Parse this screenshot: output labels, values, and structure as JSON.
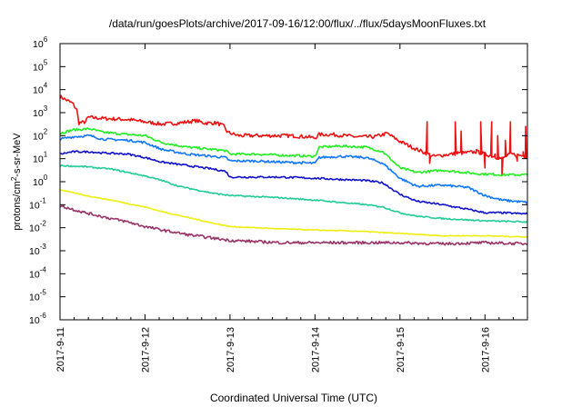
{
  "chart_data": {
    "type": "line",
    "title": "/data/run/goesPlots/archive/2017-09-16/12:00/flux/../flux/5daysMoonFluxes.txt",
    "xlabel": "Coordinated Universal Time (UTC)",
    "ylabel": {
      "prefix": "protons/cm",
      "sup": "2",
      "suffix": "-s-sr-MeV"
    },
    "yscale": "log",
    "ylim": [
      1e-06,
      1000000.0
    ],
    "xlim": [
      0,
      5.5
    ],
    "grid": false,
    "yticks": [
      {
        "base": "10",
        "exp": "-6",
        "v": -6
      },
      {
        "base": "10",
        "exp": "-5",
        "v": -5
      },
      {
        "base": "10",
        "exp": "-4",
        "v": -4
      },
      {
        "base": "10",
        "exp": "-3",
        "v": -3
      },
      {
        "base": "10",
        "exp": "-2",
        "v": -2
      },
      {
        "base": "10",
        "exp": "-1",
        "v": -1
      },
      {
        "base": "10",
        "exp": "0",
        "v": 0
      },
      {
        "base": "10",
        "exp": "1",
        "v": 1
      },
      {
        "base": "10",
        "exp": "2",
        "v": 2
      },
      {
        "base": "10",
        "exp": "3",
        "v": 3
      },
      {
        "base": "10",
        "exp": "4",
        "v": 4
      },
      {
        "base": "10",
        "exp": "5",
        "v": 5
      },
      {
        "base": "10",
        "exp": "6",
        "v": 6
      }
    ],
    "xticks": [
      {
        "label": "2017-9-11",
        "v": 0
      },
      {
        "label": "2017-9-12",
        "v": 1
      },
      {
        "label": "2017-9-13",
        "v": 2
      },
      {
        "label": "2017-9-14",
        "v": 3
      },
      {
        "label": "2017-9-15",
        "v": 4
      },
      {
        "label": "2017-9-16",
        "v": 5
      }
    ],
    "series": [
      {
        "color": "#ee1111",
        "noise": 0.08,
        "values": [
          [
            0,
            3.7
          ],
          [
            0.05,
            3.6
          ],
          [
            0.15,
            3.4
          ],
          [
            0.2,
            3.1
          ],
          [
            0.22,
            2.55
          ],
          [
            0.3,
            2.6
          ],
          [
            0.33,
            2.8
          ],
          [
            0.5,
            2.75
          ],
          [
            0.8,
            2.7
          ],
          [
            1.0,
            2.6
          ],
          [
            1.2,
            2.5
          ],
          [
            1.4,
            2.55
          ],
          [
            1.6,
            2.65
          ],
          [
            1.7,
            2.55
          ],
          [
            1.85,
            2.55
          ],
          [
            1.93,
            2.4
          ],
          [
            1.97,
            2.15
          ],
          [
            2.1,
            2.0
          ],
          [
            2.4,
            2.0
          ],
          [
            2.7,
            2.0
          ],
          [
            2.9,
            1.95
          ],
          [
            3.0,
            1.9
          ],
          [
            3.05,
            2.05
          ],
          [
            3.2,
            2.05
          ],
          [
            3.5,
            1.95
          ],
          [
            3.7,
            1.95
          ],
          [
            3.85,
            2.1
          ],
          [
            4.0,
            1.75
          ],
          [
            4.2,
            1.4
          ],
          [
            4.4,
            1.1
          ],
          [
            4.6,
            1.2
          ],
          [
            4.9,
            1.3
          ],
          [
            5.2,
            1.0
          ],
          [
            5.3,
            1.2
          ],
          [
            5.5,
            1.1
          ]
        ],
        "spikes": [
          [
            4.32,
            2.6
          ],
          [
            4.35,
            0.8
          ],
          [
            4.65,
            2.6
          ],
          [
            4.68,
            1.3
          ],
          [
            4.72,
            2.2
          ],
          [
            4.9,
            1.4
          ],
          [
            4.95,
            2.6
          ],
          [
            5.0,
            0.6
          ],
          [
            5.08,
            2.6
          ],
          [
            5.12,
            1.2
          ],
          [
            5.15,
            2.0
          ],
          [
            5.2,
            0.3
          ],
          [
            5.24,
            1.8
          ],
          [
            5.3,
            2.6
          ],
          [
            5.38,
            0.9
          ],
          [
            5.45,
            1.3
          ],
          [
            5.48,
            2.4
          ],
          [
            5.5,
            1.0
          ]
        ]
      },
      {
        "color": "#22ee22",
        "noise": 0.05,
        "values": [
          [
            0,
            2.1
          ],
          [
            0.15,
            2.25
          ],
          [
            0.35,
            2.3
          ],
          [
            0.5,
            2.15
          ],
          [
            0.8,
            2.05
          ],
          [
            1.0,
            2.0
          ],
          [
            1.2,
            1.7
          ],
          [
            1.5,
            1.5
          ],
          [
            1.8,
            1.4
          ],
          [
            1.95,
            1.35
          ],
          [
            2.0,
            1.2
          ],
          [
            2.3,
            1.2
          ],
          [
            2.6,
            1.15
          ],
          [
            3.0,
            1.1
          ],
          [
            3.05,
            1.5
          ],
          [
            3.3,
            1.55
          ],
          [
            3.6,
            1.5
          ],
          [
            3.8,
            1.3
          ],
          [
            4.0,
            0.6
          ],
          [
            4.2,
            0.4
          ],
          [
            4.5,
            0.5
          ],
          [
            4.9,
            0.35
          ],
          [
            5.2,
            0.3
          ],
          [
            5.5,
            0.3
          ]
        ]
      },
      {
        "color": "#1177ff",
        "noise": 0.05,
        "values": [
          [
            0,
            1.85
          ],
          [
            0.15,
            1.95
          ],
          [
            0.35,
            2.0
          ],
          [
            0.5,
            1.85
          ],
          [
            0.8,
            1.8
          ],
          [
            1.0,
            1.7
          ],
          [
            1.2,
            1.4
          ],
          [
            1.5,
            1.2
          ],
          [
            1.8,
            1.1
          ],
          [
            1.95,
            1.05
          ],
          [
            2.0,
            0.9
          ],
          [
            2.3,
            0.9
          ],
          [
            2.6,
            0.85
          ],
          [
            3.0,
            0.8
          ],
          [
            3.05,
            1.05
          ],
          [
            3.3,
            1.1
          ],
          [
            3.6,
            1.05
          ],
          [
            3.8,
            0.8
          ],
          [
            4.0,
            0.15
          ],
          [
            4.2,
            -0.2
          ],
          [
            4.5,
            -0.15
          ],
          [
            4.8,
            -0.25
          ],
          [
            5.0,
            -0.6
          ],
          [
            5.2,
            -0.8
          ],
          [
            5.5,
            -0.9
          ]
        ]
      },
      {
        "color": "#1111cc",
        "noise": 0.04,
        "values": [
          [
            0,
            1.2
          ],
          [
            0.15,
            1.3
          ],
          [
            0.35,
            1.3
          ],
          [
            0.5,
            1.25
          ],
          [
            0.8,
            1.2
          ],
          [
            1.0,
            1.05
          ],
          [
            1.2,
            0.85
          ],
          [
            1.5,
            0.7
          ],
          [
            1.8,
            0.55
          ],
          [
            1.95,
            0.45
          ],
          [
            2.0,
            0.2
          ],
          [
            2.3,
            0.2
          ],
          [
            2.6,
            0.2
          ],
          [
            3.0,
            0.15
          ],
          [
            3.3,
            0.1
          ],
          [
            3.6,
            0.05
          ],
          [
            3.8,
            -0.05
          ],
          [
            4.0,
            -0.55
          ],
          [
            4.2,
            -0.85
          ],
          [
            4.5,
            -1.0
          ],
          [
            4.8,
            -1.2
          ],
          [
            5.0,
            -1.35
          ],
          [
            5.2,
            -1.35
          ],
          [
            5.5,
            -1.4
          ]
        ]
      },
      {
        "color": "#22cc99",
        "noise": 0.03,
        "values": [
          [
            0,
            0.7
          ],
          [
            0.3,
            0.65
          ],
          [
            0.6,
            0.55
          ],
          [
            0.8,
            0.4
          ],
          [
            1.0,
            0.25
          ],
          [
            1.2,
            0.05
          ],
          [
            1.4,
            -0.2
          ],
          [
            1.6,
            -0.35
          ],
          [
            1.8,
            -0.5
          ],
          [
            2.0,
            -0.6
          ],
          [
            2.3,
            -0.65
          ],
          [
            2.6,
            -0.7
          ],
          [
            3.0,
            -0.8
          ],
          [
            3.3,
            -0.9
          ],
          [
            3.6,
            -1.0
          ],
          [
            3.8,
            -1.1
          ],
          [
            4.0,
            -1.35
          ],
          [
            4.2,
            -1.5
          ],
          [
            4.5,
            -1.6
          ],
          [
            5.0,
            -1.7
          ],
          [
            5.5,
            -1.75
          ]
        ]
      },
      {
        "color": "#eeee11",
        "noise": 0.02,
        "values": [
          [
            0,
            -0.35
          ],
          [
            0.3,
            -0.6
          ],
          [
            0.6,
            -0.8
          ],
          [
            0.8,
            -0.95
          ],
          [
            1.0,
            -1.1
          ],
          [
            1.2,
            -1.3
          ],
          [
            1.5,
            -1.55
          ],
          [
            1.8,
            -1.8
          ],
          [
            2.0,
            -1.95
          ],
          [
            2.3,
            -2.0
          ],
          [
            2.6,
            -2.05
          ],
          [
            3.0,
            -2.1
          ],
          [
            3.5,
            -2.15
          ],
          [
            4.0,
            -2.25
          ],
          [
            4.5,
            -2.35
          ],
          [
            5.0,
            -2.35
          ],
          [
            5.5,
            -2.4
          ]
        ]
      },
      {
        "color": "#993366",
        "noise": 0.06,
        "values": [
          [
            0,
            -1.05
          ],
          [
            0.3,
            -1.35
          ],
          [
            0.6,
            -1.6
          ],
          [
            0.8,
            -1.75
          ],
          [
            1.0,
            -1.95
          ],
          [
            1.2,
            -2.1
          ],
          [
            1.5,
            -2.3
          ],
          [
            1.8,
            -2.45
          ],
          [
            2.0,
            -2.55
          ],
          [
            2.3,
            -2.6
          ],
          [
            2.6,
            -2.65
          ],
          [
            3.0,
            -2.65
          ],
          [
            3.5,
            -2.65
          ],
          [
            4.0,
            -2.65
          ],
          [
            4.5,
            -2.7
          ],
          [
            5.0,
            -2.65
          ],
          [
            5.5,
            -2.7
          ]
        ]
      }
    ]
  }
}
